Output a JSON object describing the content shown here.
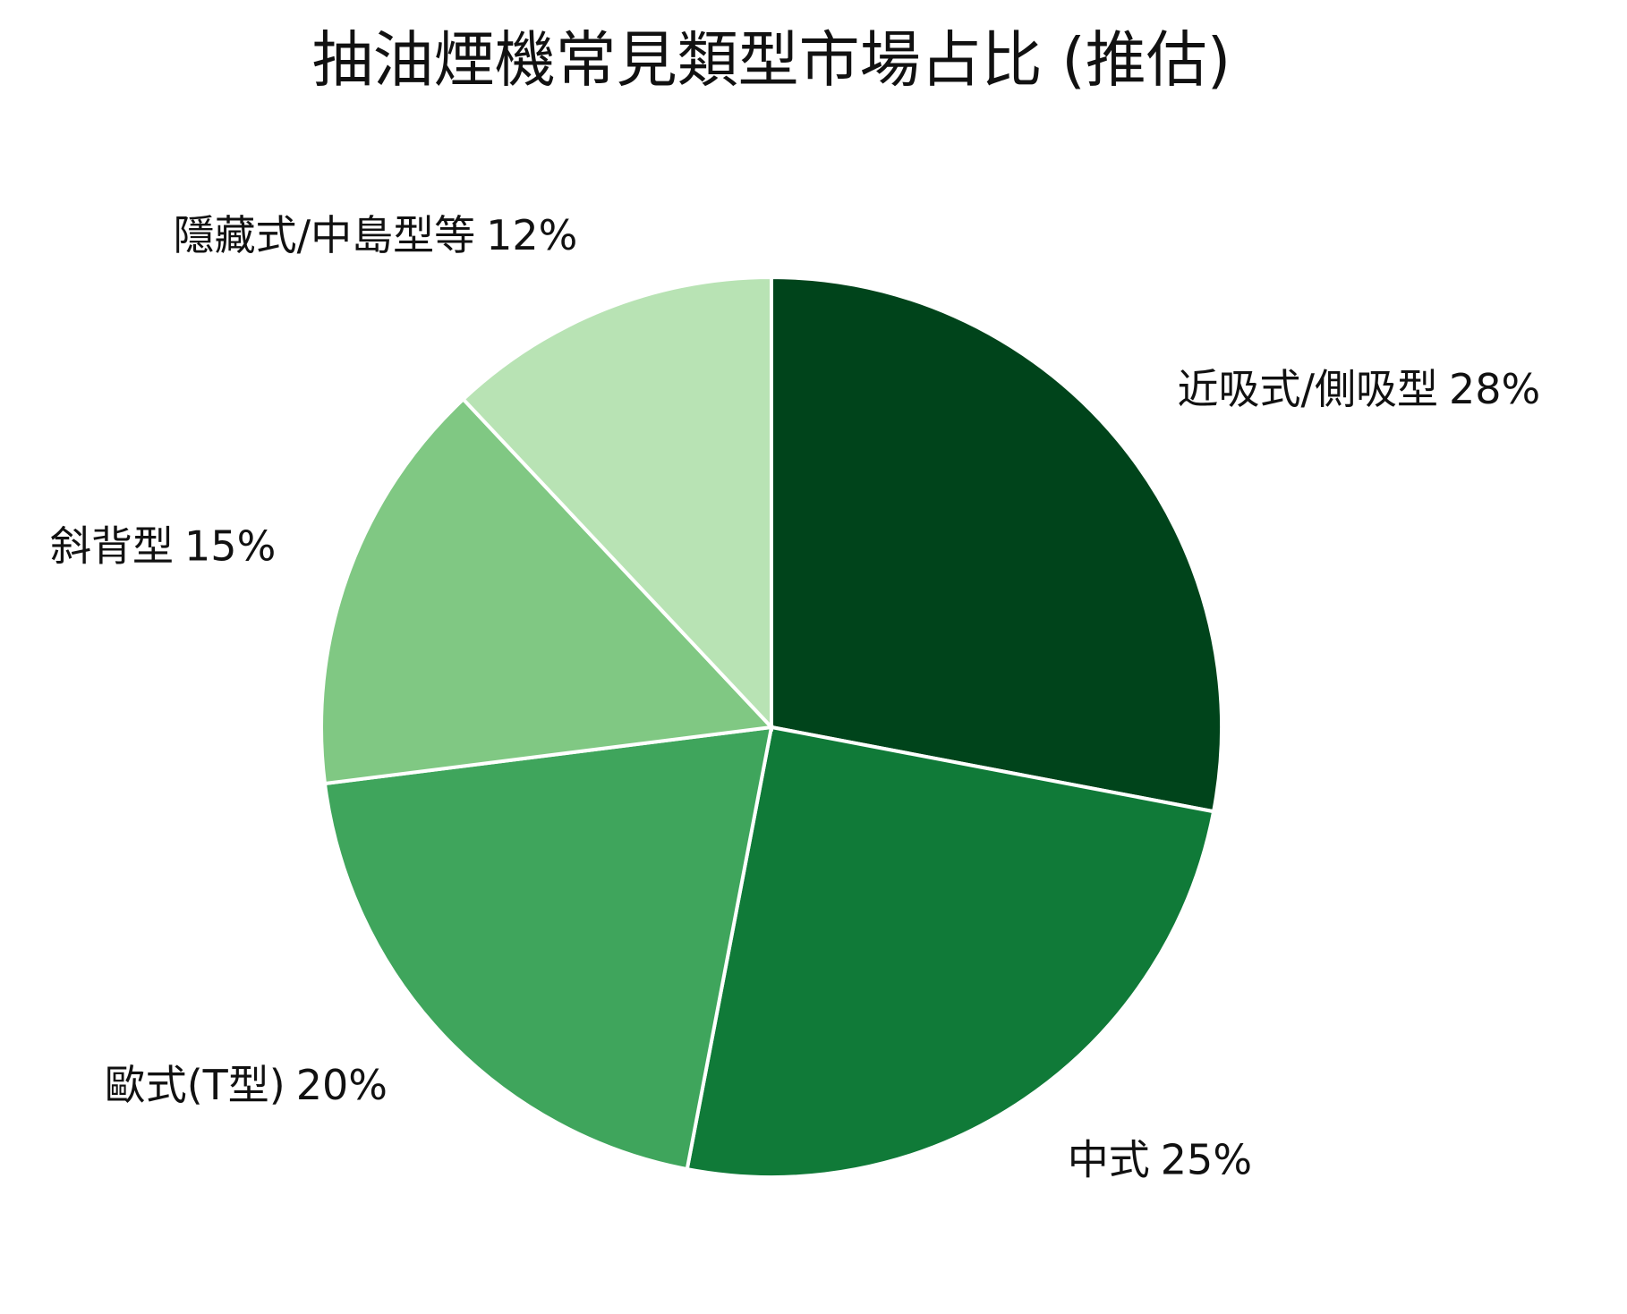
{
  "chart_data": {
    "type": "pie",
    "title": "抽油煙機常見類型市場占比 (推估)",
    "categories": [
      "近吸式/側吸型",
      "中式",
      "歐式(T型)",
      "斜背型",
      "隱藏式/中島型等"
    ],
    "values": [
      28,
      25,
      20,
      15,
      12
    ],
    "value_labels": [
      "28%",
      "25%",
      "20%",
      "15%",
      "12%"
    ],
    "colors": [
      "#00441b",
      "#107a38",
      "#3fa55c",
      "#80c883",
      "#b8e3b4"
    ]
  }
}
